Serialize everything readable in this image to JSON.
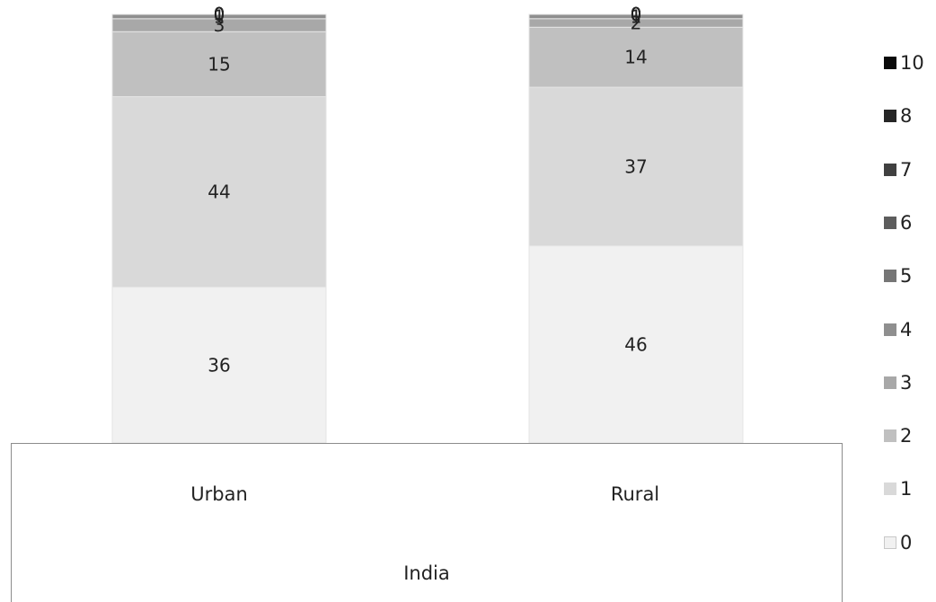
{
  "chart_data": {
    "type": "bar",
    "stacked": true,
    "percent_stacked": true,
    "categories": [
      "Urban",
      "Rural"
    ],
    "group_label": "India",
    "series": [
      {
        "name": "0",
        "values": [
          36,
          46
        ],
        "color": "#f1f1f1"
      },
      {
        "name": "1",
        "values": [
          44,
          37
        ],
        "color": "#d9d9d9"
      },
      {
        "name": "2",
        "values": [
          15,
          14
        ],
        "color": "#c0c0c0"
      },
      {
        "name": "3",
        "values": [
          3,
          2
        ],
        "color": "#a8a8a8"
      },
      {
        "name": "4",
        "values": [
          1,
          1
        ],
        "color": "#8f8f8f"
      },
      {
        "name": "5",
        "values": [
          0,
          0
        ],
        "color": "#767676"
      },
      {
        "name": "6",
        "values": [
          0,
          0
        ],
        "color": "#5d5d5d"
      },
      {
        "name": "7",
        "values": [
          0,
          0
        ],
        "color": "#404040"
      },
      {
        "name": "8",
        "values": [
          0,
          0
        ],
        "color": "#262626"
      },
      {
        "name": "10",
        "values": [
          0,
          0
        ],
        "color": "#0a0a0a"
      }
    ],
    "legend_position": "right",
    "grid": false
  }
}
